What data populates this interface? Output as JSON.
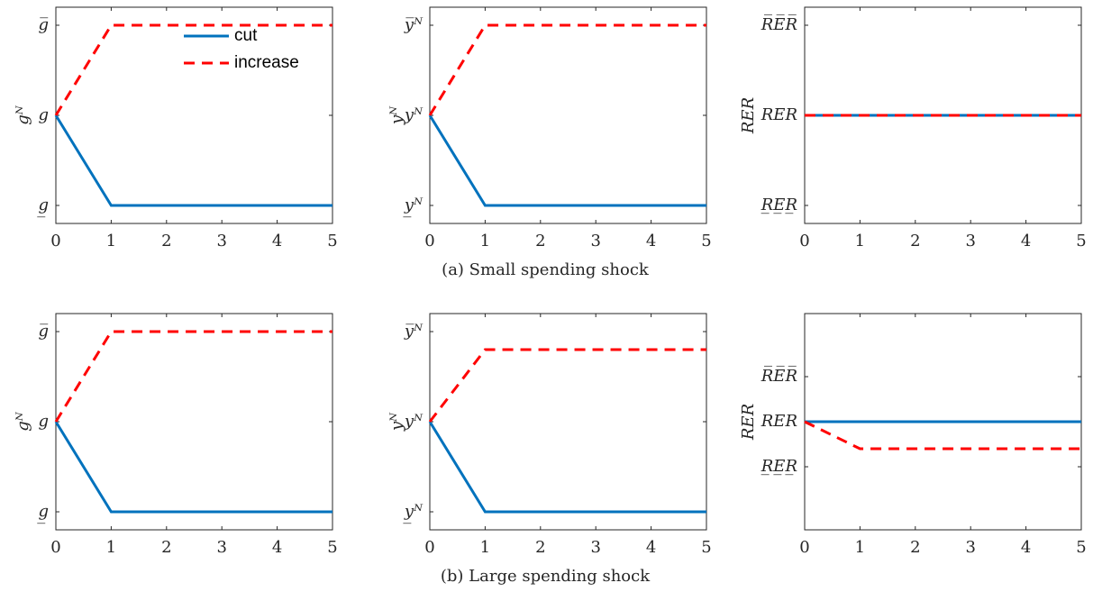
{
  "captions": [
    "(a) Small spending shock",
    "(b) Large spending shock"
  ],
  "chart_data": [
    {
      "type": "line",
      "ylabel": "gᴺ",
      "x": [
        0,
        1,
        2,
        3,
        4,
        5
      ],
      "xlim": [
        0,
        5
      ],
      "xticks": [
        0,
        1,
        2,
        3,
        4,
        5
      ],
      "ylim": [
        -1.2,
        1.2
      ],
      "yticks": [
        {
          "value": -1,
          "label": "g̲"
        },
        {
          "value": 0,
          "label": "g"
        },
        {
          "value": 1,
          "label": "g̅"
        }
      ],
      "legend": "upper right",
      "series": [
        {
          "name": "cut",
          "color": "#0072bd",
          "values": [
            0,
            -1,
            -1,
            -1,
            -1,
            -1
          ]
        },
        {
          "name": "increase",
          "color": "#ff0000",
          "values": [
            0,
            1,
            1,
            1,
            1,
            1
          ]
        }
      ]
    },
    {
      "type": "line",
      "ylabel": "yᴺ",
      "x": [
        0,
        1,
        2,
        3,
        4,
        5
      ],
      "xlim": [
        0,
        5
      ],
      "xticks": [
        0,
        1,
        2,
        3,
        4,
        5
      ],
      "ylim": [
        -1.2,
        1.2
      ],
      "yticks": [
        {
          "value": -1,
          "label": "y̲ᴺ"
        },
        {
          "value": 0,
          "label": "yᴺ"
        },
        {
          "value": 1,
          "label": "y̅ᴺ"
        }
      ],
      "series": [
        {
          "color": "#0072bd",
          "values": [
            0,
            -1,
            -1,
            -1,
            -1,
            -1
          ]
        },
        {
          "color": "#ff0000",
          "values": [
            0,
            1,
            1,
            1,
            1,
            1
          ]
        }
      ]
    },
    {
      "type": "line",
      "ylabel": "RER",
      "x": [
        0,
        1,
        2,
        3,
        4,
        5
      ],
      "xlim": [
        0,
        5
      ],
      "xticks": [
        0,
        1,
        2,
        3,
        4,
        5
      ],
      "ylim": [
        -1.2,
        1.2
      ],
      "yticks": [
        {
          "value": -1,
          "label": "R̲E̲R̲"
        },
        {
          "value": 0,
          "label": "RER"
        },
        {
          "value": 1,
          "label": "R̅E̅R̅"
        }
      ],
      "series": [
        {
          "color": "#0072bd",
          "values": [
            0,
            0,
            0,
            0,
            0,
            0
          ]
        },
        {
          "color": "#ff0000",
          "values": [
            0,
            0,
            0,
            0,
            0,
            0
          ]
        }
      ]
    },
    {
      "type": "line",
      "ylabel": "gᴺ",
      "x": [
        0,
        1,
        2,
        3,
        4,
        5
      ],
      "xlim": [
        0,
        5
      ],
      "xticks": [
        0,
        1,
        2,
        3,
        4,
        5
      ],
      "ylim": [
        -1.2,
        1.2
      ],
      "yticks": [
        {
          "value": -1,
          "label": "g̲"
        },
        {
          "value": 0,
          "label": "g"
        },
        {
          "value": 1,
          "label": "g̅"
        }
      ],
      "series": [
        {
          "color": "#0072bd",
          "values": [
            0,
            -1,
            -1,
            -1,
            -1,
            -1
          ]
        },
        {
          "color": "#ff0000",
          "values": [
            0,
            1,
            1,
            1,
            1,
            1
          ]
        }
      ]
    },
    {
      "type": "line",
      "ylabel": "yᴺ",
      "x": [
        0,
        1,
        2,
        3,
        4,
        5
      ],
      "xlim": [
        0,
        5
      ],
      "xticks": [
        0,
        1,
        2,
        3,
        4,
        5
      ],
      "ylim": [
        -1.2,
        1.2
      ],
      "yticks": [
        {
          "value": -1,
          "label": "y̲ᴺ"
        },
        {
          "value": 0,
          "label": "yᴺ"
        },
        {
          "value": 1,
          "label": "y̅ᴺ"
        }
      ],
      "series": [
        {
          "color": "#0072bd",
          "values": [
            0,
            -1,
            -1,
            -1,
            -1,
            -1
          ]
        },
        {
          "color": "#ff0000",
          "values": [
            0,
            0.8,
            0.8,
            0.8,
            0.8,
            0.8
          ]
        }
      ]
    },
    {
      "type": "line",
      "ylabel": "RER",
      "x": [
        0,
        1,
        2,
        3,
        4,
        5
      ],
      "xlim": [
        0,
        5
      ],
      "xticks": [
        0,
        1,
        2,
        3,
        4,
        5
      ],
      "ylim": [
        -1.2,
        1.2
      ],
      "yticks": [
        {
          "value": -0.5,
          "label": "R̲E̲R̲"
        },
        {
          "value": 0,
          "label": "RER"
        },
        {
          "value": 0.5,
          "label": "R̅E̅R̅"
        }
      ],
      "series": [
        {
          "color": "#0072bd",
          "values": [
            0,
            0,
            0,
            0,
            0,
            0
          ]
        },
        {
          "color": "#ff0000",
          "values": [
            0,
            -0.3,
            -0.3,
            -0.3,
            -0.3,
            -0.3
          ]
        }
      ]
    }
  ]
}
